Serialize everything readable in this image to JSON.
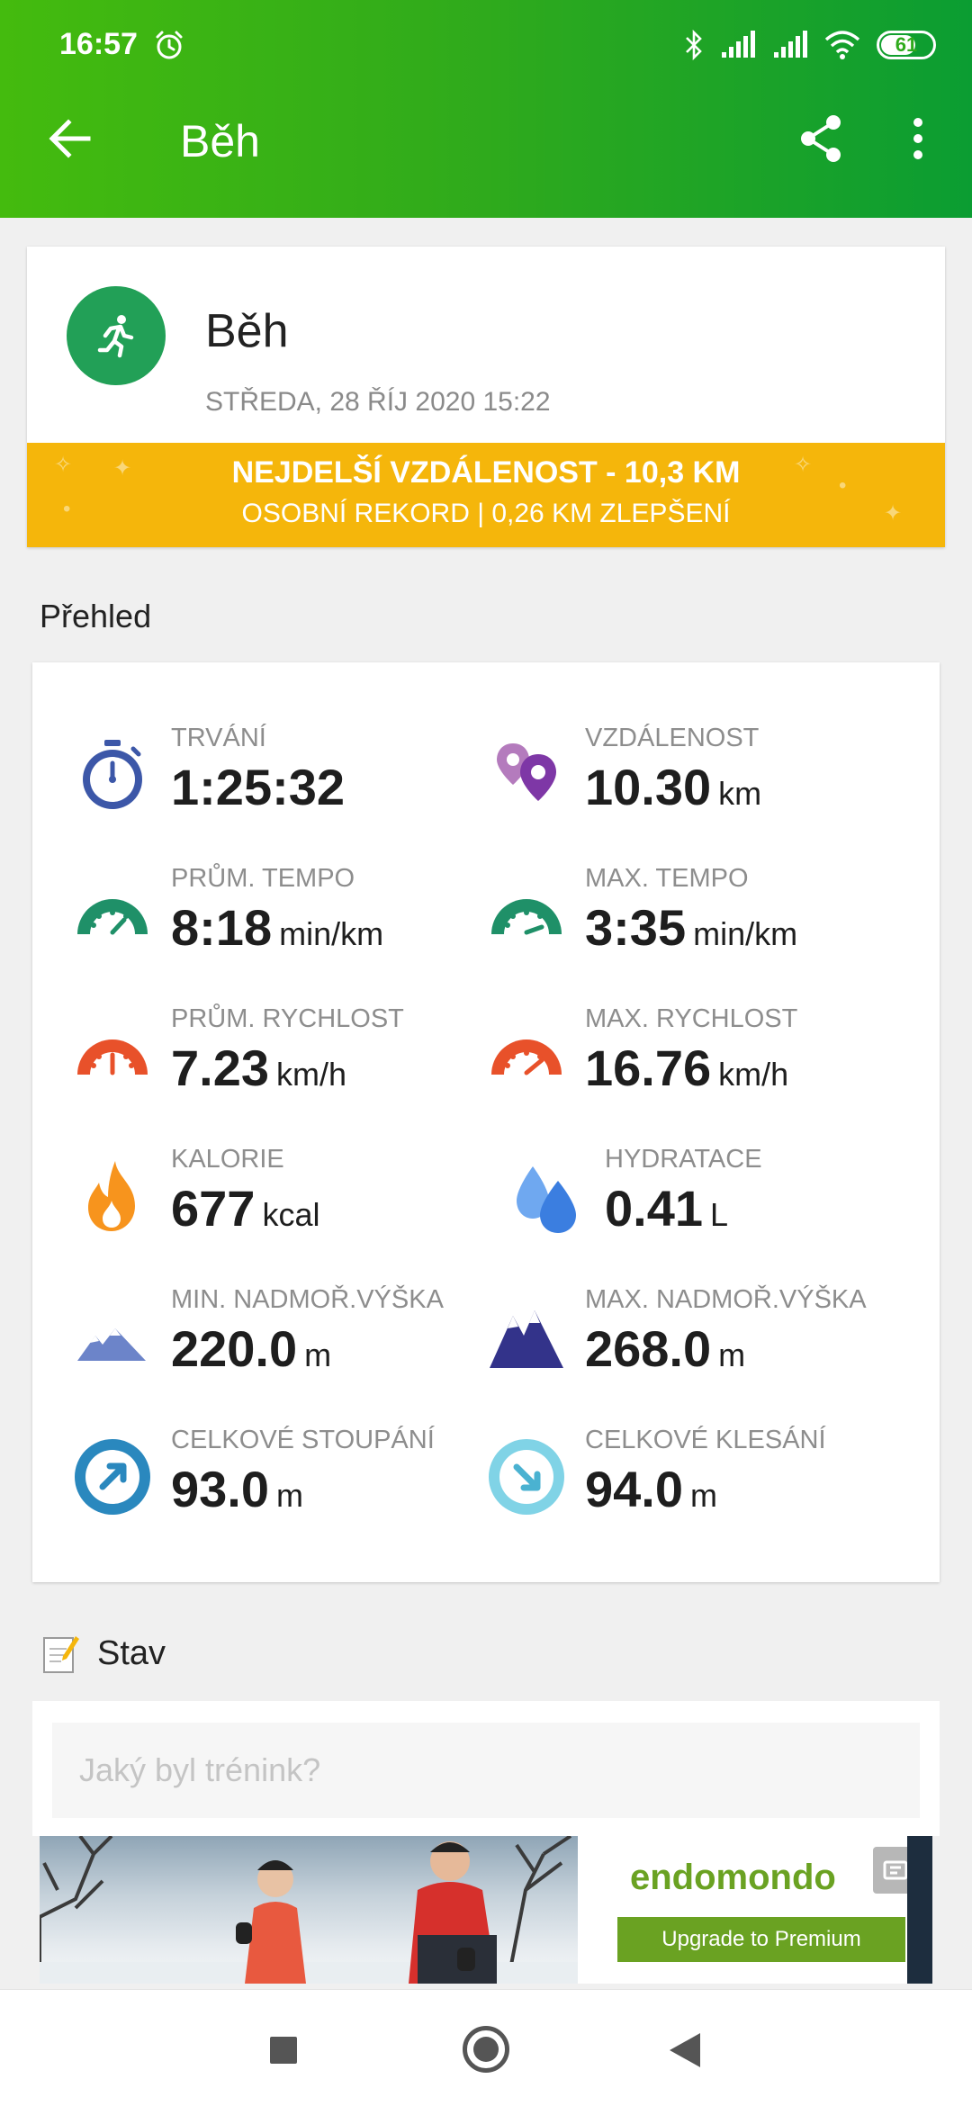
{
  "status_bar": {
    "time": "16:57",
    "battery": "61",
    "icons": [
      "alarm-icon",
      "bluetooth-icon",
      "signal-icon",
      "signal-icon",
      "wifi-icon",
      "battery-icon"
    ]
  },
  "app_bar": {
    "title": "Běh",
    "icons": [
      "back-arrow-icon",
      "share-icon",
      "more-vert-icon"
    ]
  },
  "activity": {
    "name": "Běh",
    "date": "STŘEDA, 28 ŘÍJ 2020 15:22",
    "record_line1": "NEJDELŠÍ VZDÁLENOST  -  10,3 KM",
    "record_line2": "OSOBNÍ REKORD  |  0,26 KM ZLEPŠENÍ",
    "icon": "running-person-icon",
    "accent": "#22a057",
    "record_color": "#f5b60b"
  },
  "overview": {
    "title": "Přehled",
    "metrics": [
      {
        "label": "TRVÁNÍ",
        "value": "1:25:32",
        "unit": "",
        "icon": "stopwatch-icon"
      },
      {
        "label": "VZDÁLENOST",
        "value": "10.30",
        "unit": "km",
        "icon": "map-pins-icon"
      },
      {
        "label": "PRŮM. TEMPO",
        "value": "8:18",
        "unit": "min/km",
        "icon": "speedometer-green-icon"
      },
      {
        "label": "MAX. TEMPO",
        "value": "3:35",
        "unit": "min/km",
        "icon": "speedometer-green-icon"
      },
      {
        "label": "PRŮM. RYCHLOST",
        "value": "7.23",
        "unit": "km/h",
        "icon": "speedometer-red-icon"
      },
      {
        "label": "MAX. RYCHLOST",
        "value": "16.76",
        "unit": "km/h",
        "icon": "speedometer-red-icon"
      },
      {
        "label": "KALORIE",
        "value": "677",
        "unit": "kcal",
        "icon": "flame-icon"
      },
      {
        "label": "HYDRATACE",
        "value": "0.41",
        "unit": "L",
        "icon": "water-drops-icon"
      },
      {
        "label": "MIN. NADMOŘ.VÝŠKA",
        "value": "220.0",
        "unit": "m",
        "icon": "mountain-light-icon"
      },
      {
        "label": "MAX. NADMOŘ.VÝŠKA",
        "value": "268.0",
        "unit": "m",
        "icon": "mountain-dark-icon"
      },
      {
        "label": "CELKOVÉ STOUPÁNÍ",
        "value": "93.0",
        "unit": "m",
        "icon": "ascent-arrow-icon"
      },
      {
        "label": "CELKOVÉ KLESÁNÍ",
        "value": "94.0",
        "unit": "m",
        "icon": "descent-arrow-icon"
      }
    ]
  },
  "status": {
    "title": "Stav",
    "placeholder": "Jaký byl trénink?",
    "icon": "note-pencil-icon"
  },
  "ad": {
    "logo": "endomondo",
    "cta": "Upgrade to Premium",
    "brand_color": "#6aa222"
  },
  "nav": {
    "icons": [
      "recent-apps-icon",
      "home-icon",
      "back-icon"
    ]
  }
}
